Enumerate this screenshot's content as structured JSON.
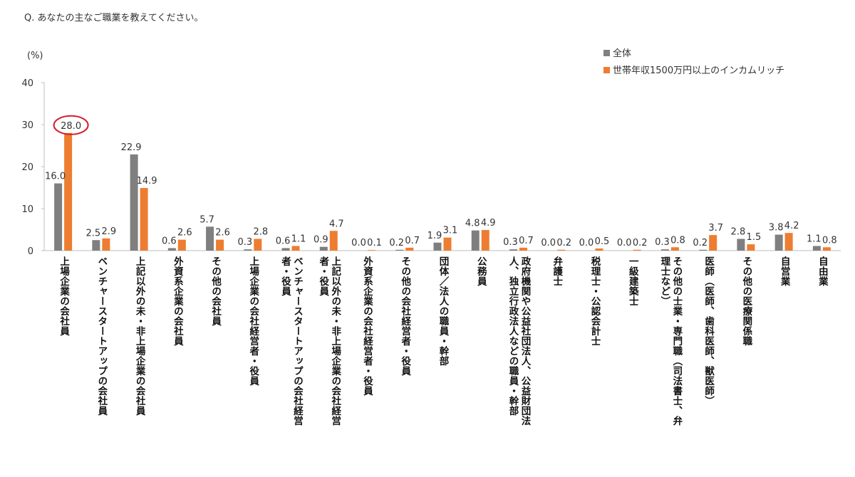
{
  "question": "Q. あなたの主なご職業を教えてください。",
  "colors": {
    "series1": "#7f7f7f",
    "series2": "#ed7d31",
    "highlight": "#d0202a"
  },
  "chart_data": {
    "type": "bar",
    "title": "",
    "ylabel": "(%)",
    "xlabel": "",
    "ylim": [
      0,
      40
    ],
    "yticks": [
      0,
      10,
      20,
      30,
      40
    ],
    "legend_position": "top-right",
    "highlighted_label": {
      "series": 1,
      "category_index": 0
    },
    "categories": [
      [
        "上場企業の会社員"
      ],
      [
        "ベンチャースタートアップの会社員"
      ],
      [
        "上記以外の未・非上場企業の会社員"
      ],
      [
        "外資系企業の会社員"
      ],
      [
        "その他の会社員"
      ],
      [
        "上場企業の会社経営者・役員"
      ],
      [
        "ベンチャースタートアップの会社経営",
        "者・役員"
      ],
      [
        "上記以外の未・非上場企業の会社経営",
        "者・役員"
      ],
      [
        "外資系企業の会社経営者・役員"
      ],
      [
        "その他の会社経営者・役員"
      ],
      [
        "団体／法人の職員・幹部"
      ],
      [
        "公務員"
      ],
      [
        "政府機関や公益社団法人、公益財団法",
        "人、独立行政法人などの職員・幹部"
      ],
      [
        "弁護士"
      ],
      [
        "税理士・公認会計士"
      ],
      [
        "一級建築士"
      ],
      [
        "その他の士業・専門職（司法書士、弁",
        "理士など）"
      ],
      [
        "医師（医師、歯科医師、獣医師）"
      ],
      [
        "その他の医療関係職"
      ],
      [
        "自営業"
      ],
      [
        "自由業"
      ]
    ],
    "series": [
      {
        "name": "全体",
        "values": [
          16.0,
          2.5,
          22.9,
          0.6,
          5.7,
          0.3,
          0.6,
          0.9,
          0.0,
          0.2,
          1.9,
          4.8,
          0.3,
          0.0,
          0.0,
          0.0,
          0.3,
          0.2,
          2.8,
          3.8,
          1.1
        ],
        "labels": [
          "16.0",
          "2.5",
          "22.9",
          "0.6",
          "5.7",
          "0.3",
          "0.6",
          "0.9",
          "0.0",
          "0.2",
          "1.9",
          "4.8",
          "0.3",
          "0.0",
          "0.0",
          "0.0",
          "0.3",
          "0.2",
          "2.8",
          "3.8",
          "1.1"
        ]
      },
      {
        "name": "世帯年収1500万円以上のインカムリッチ",
        "values": [
          28.0,
          2.9,
          14.9,
          2.6,
          2.6,
          2.8,
          1.1,
          4.7,
          0.1,
          0.7,
          3.1,
          4.9,
          0.7,
          0.2,
          0.5,
          0.2,
          0.8,
          3.7,
          1.5,
          4.2,
          0.8
        ],
        "labels": [
          "28.0",
          "2.9",
          "14.9",
          "2.6",
          "2.6",
          "2.8",
          "1.1",
          "4.7",
          "0.1",
          "0.7",
          "3.1",
          "4.9",
          "0.7",
          "0.2",
          "0.5",
          "0.2",
          "0.8",
          "3.7",
          "1.5",
          "4.2",
          "0.8"
        ]
      }
    ]
  }
}
